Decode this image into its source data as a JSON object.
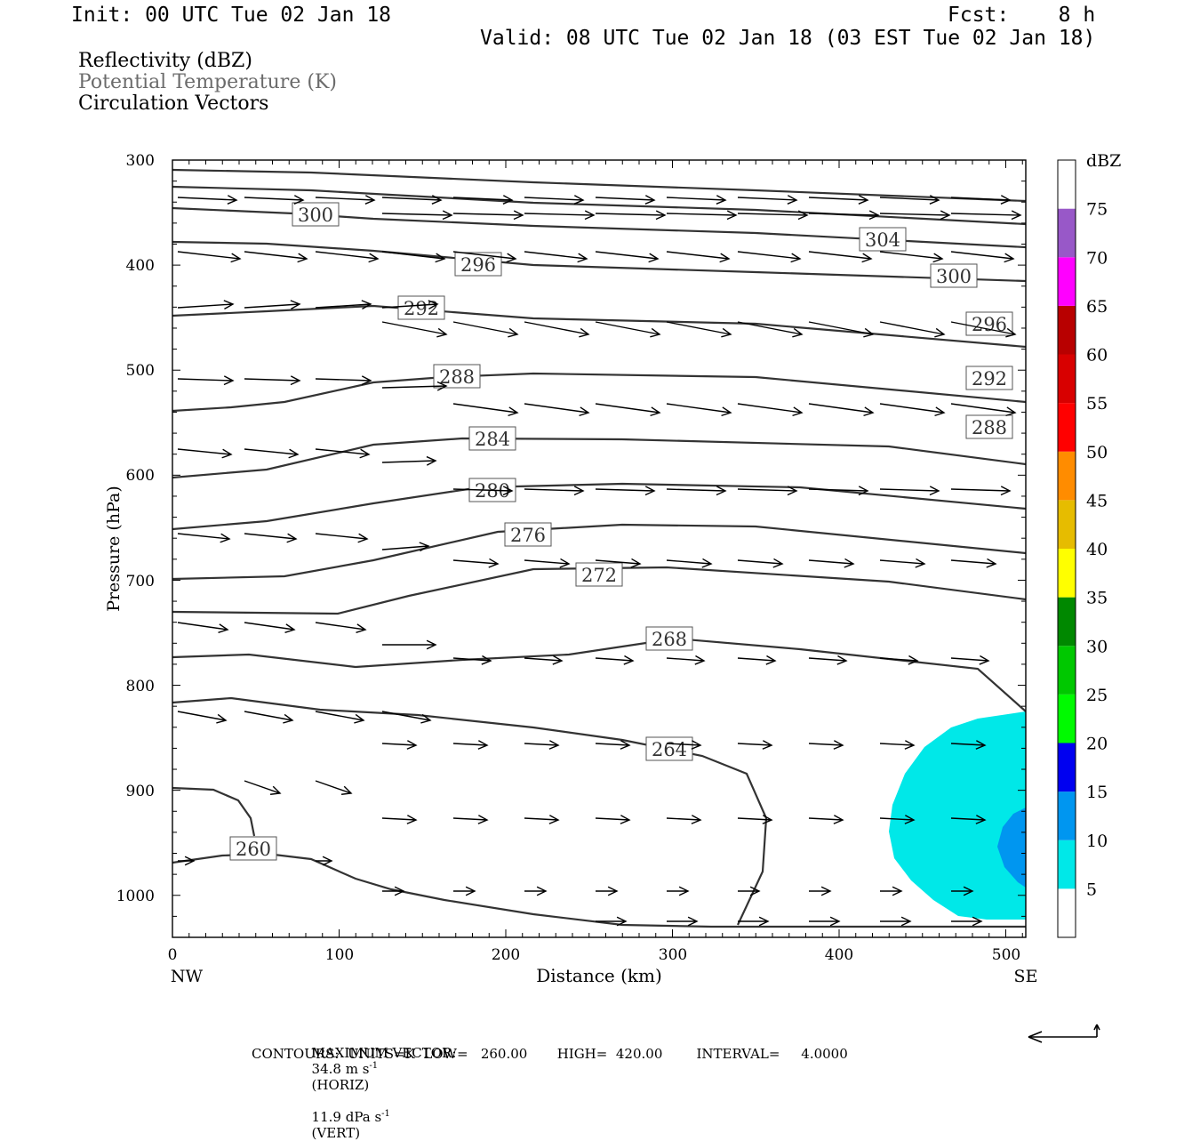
{
  "header": {
    "init": "Init: 00 UTC Tue 02 Jan 18",
    "fcst": "Fcst:    8 h",
    "valid": "Valid: 08 UTC Tue 02 Jan 18 (03 EST Tue 02 Jan 18)",
    "fields": [
      "Reflectivity (dBZ)",
      "Potential Temperature (K)",
      "Circulation Vectors"
    ]
  },
  "footer": {
    "max_vector_label": "MAXIMUM VECTOR:",
    "max_horiz": "34.8 m s",
    "max_horiz_sup": "-1",
    "max_horiz_tail": "(HORIZ)",
    "max_vert": "11.9 dPa s",
    "max_vert_sup": "-1",
    "max_vert_tail": "(VERT)",
    "contours": "CONTOURS:  UNITS=K  LOW=   260.00       HIGH=  420.00        INTERVAL=     4.0000"
  },
  "colorbar": {
    "unit": "dBZ",
    "levels": [
      5,
      10,
      15,
      20,
      25,
      30,
      35,
      40,
      45,
      50,
      55,
      60,
      65,
      70,
      75
    ],
    "colors": [
      "#00e8e8",
      "#0096f0",
      "#0000f0",
      "#00fa00",
      "#00c800",
      "#008800",
      "#ffff00",
      "#e6bc00",
      "#ff8c00",
      "#ff0000",
      "#d80000",
      "#b80000",
      "#ff00ff",
      "#9858c8",
      "#ffffff"
    ]
  },
  "chart_data": {
    "type": "contour",
    "title": "",
    "xlabel": "Distance (km)",
    "ylabel": "Pressure (hPa)",
    "xlim": [
      0,
      512
    ],
    "ylim": [
      300,
      1040
    ],
    "x_ticks": [
      0,
      100,
      200,
      300,
      400,
      500
    ],
    "y_ticks": [
      300,
      400,
      500,
      600,
      700,
      800,
      900,
      1000
    ],
    "x_end_labels": {
      "left": "NW",
      "right": "SE"
    },
    "contour_labels": [
      {
        "value": "300",
        "x": 85,
        "p": 351
      },
      {
        "value": "304",
        "x": 426,
        "p": 374
      },
      {
        "value": "296",
        "x": 184,
        "p": 399
      },
      {
        "value": "300",
        "x": 469,
        "p": 410
      },
      {
        "value": "292",
        "x": 150,
        "p": 441
      },
      {
        "value": "296",
        "x": 490,
        "p": 455
      },
      {
        "value": "288",
        "x": 170,
        "p": 506
      },
      {
        "value": "292",
        "x": 490,
        "p": 508
      },
      {
        "value": "284",
        "x": 191,
        "p": 565
      },
      {
        "value": "288",
        "x": 490,
        "p": 555
      },
      {
        "value": "280",
        "x": 191,
        "p": 613
      },
      {
        "value": "276",
        "x": 212,
        "p": 656
      },
      {
        "value": "272",
        "x": 255,
        "p": 696
      },
      {
        "value": "268",
        "x": 298,
        "p": 774
      },
      {
        "value": "264",
        "x": 298,
        "p": 873
      },
      {
        "value": "260",
        "x": 48,
        "p": 958
      }
    ],
    "reflectivity_region": {
      "dbz": "5-10",
      "x_range": [
        430,
        512
      ],
      "p_range": [
        828,
        1025
      ]
    },
    "reflectivity_core": {
      "dbz": "10-15",
      "x_range": [
        495,
        512
      ],
      "p_range": [
        920,
        995
      ]
    }
  }
}
